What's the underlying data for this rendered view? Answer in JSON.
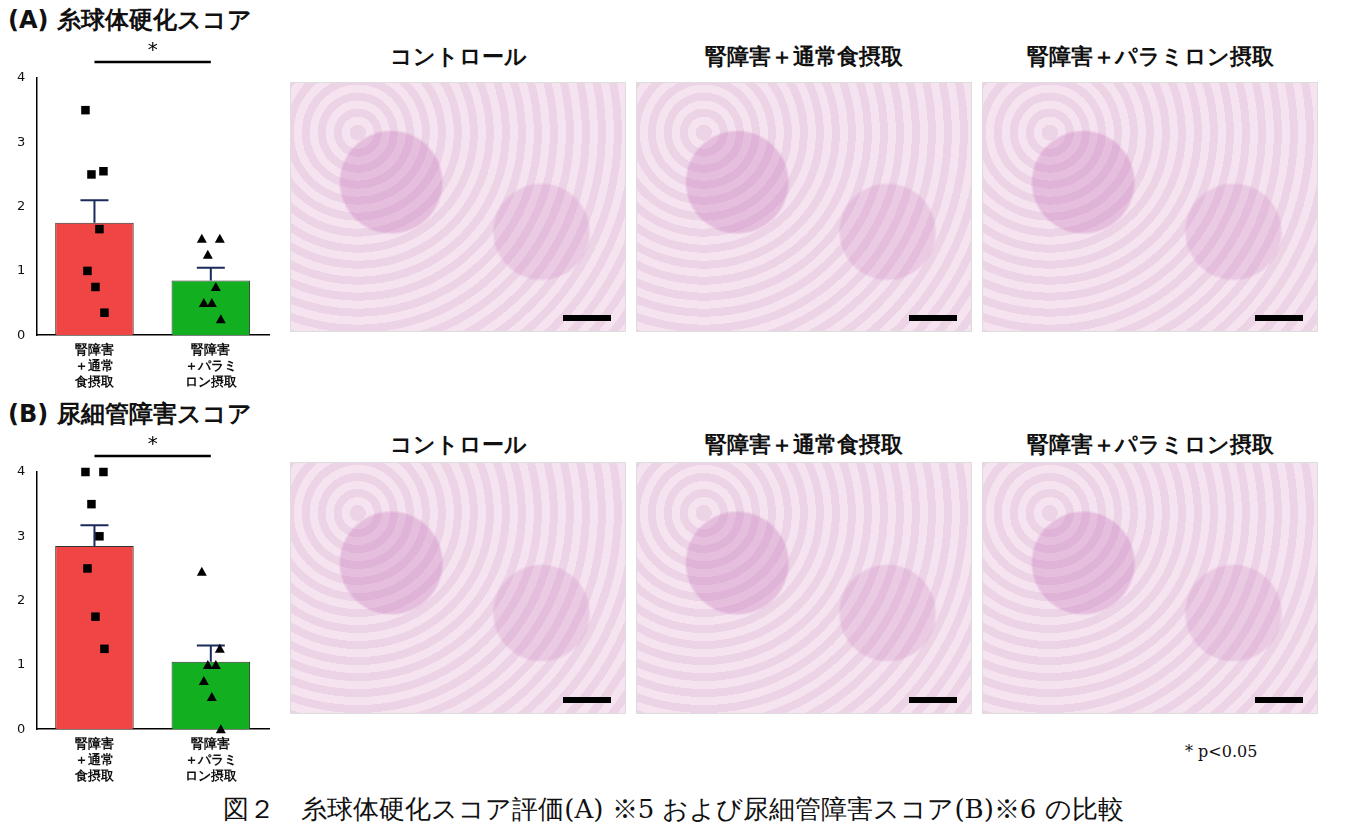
{
  "chart_data": [
    {
      "type": "bar",
      "title": "(A) 糸球体硬化スコア",
      "categories": [
        [
          "腎障害",
          "＋通常",
          "食摂取"
        ],
        [
          "腎障害",
          "＋パラミ",
          "ロン摂取"
        ]
      ],
      "values": [
        1.75,
        0.85
      ],
      "error": [
        0.35,
        0.2
      ],
      "colors": [
        "#f04545",
        "#12b020"
      ],
      "points": [
        {
          "marker": "square",
          "values": [
            3.5,
            2.55,
            2.5,
            1.65,
            1.0,
            0.75,
            0.35
          ]
        },
        {
          "marker": "triangle",
          "values": [
            1.5,
            1.5,
            1.25,
            0.75,
            0.5,
            0.5,
            0.25
          ]
        }
      ],
      "annotations": [
        "*"
      ],
      "ylim": [
        0,
        4
      ],
      "yticks": [
        0,
        1,
        2,
        3,
        4
      ],
      "grid": false
    },
    {
      "type": "bar",
      "title": "(B) 尿細管障害スコア",
      "categories": [
        [
          "腎障害",
          "＋通常",
          "食摂取"
        ],
        [
          "腎障害",
          "＋パラミ",
          "ロン摂取"
        ]
      ],
      "values": [
        2.85,
        1.05
      ],
      "error": [
        0.32,
        0.25
      ],
      "colors": [
        "#f04545",
        "#12b020"
      ],
      "points": [
        {
          "marker": "square",
          "values": [
            4.0,
            4.0,
            3.5,
            3.0,
            2.5,
            1.75,
            1.25
          ]
        },
        {
          "marker": "triangle",
          "values": [
            2.45,
            1.25,
            1.0,
            1.0,
            0.75,
            0.5,
            0.0
          ]
        }
      ],
      "annotations": [
        "*"
      ],
      "ylim": [
        0,
        4
      ],
      "yticks": [
        0,
        1,
        2,
        3,
        4
      ],
      "grid": false
    }
  ],
  "image_titles": [
    [
      "コントロール",
      "腎障害＋通常食摂取",
      "腎障害＋パラミロン摂取"
    ],
    [
      "コントロール",
      "腎障害＋通常食摂取",
      "腎障害＋パラミロン摂取"
    ]
  ],
  "footnote": "* p<0.05",
  "caption": "図２　糸球体硬化スコア評価(A) ※5 および尿細管障害スコア(B)※6 の比較"
}
